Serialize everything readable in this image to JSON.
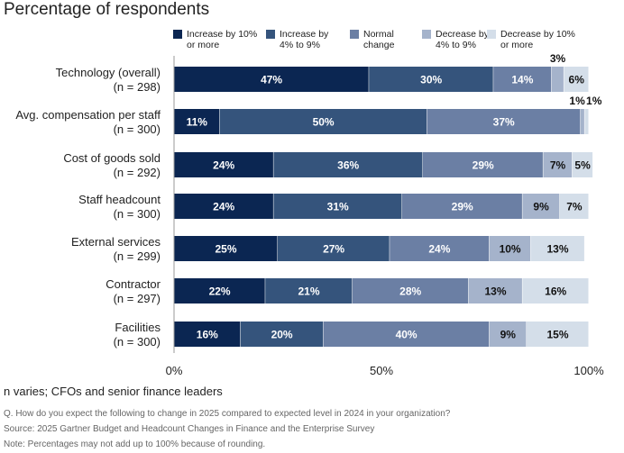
{
  "chart_data": {
    "type": "bar",
    "orientation": "horizontal",
    "stacked": true,
    "title": "Percentage of respondents",
    "categories": [
      "Technology (overall)",
      "Avg. compensation per staff",
      "Cost of goods sold",
      "Staff headcount",
      "External services",
      "Contractor",
      "Facilities"
    ],
    "category_n": [
      "(n = 298)",
      "(n = 300)",
      "(n = 292)",
      "(n = 300)",
      "(n = 299)",
      "(n = 297)",
      "(n = 300)"
    ],
    "series": [
      {
        "name": "Increase by 10% or more",
        "legend_lines": [
          "Increase by 10%",
          "or more"
        ],
        "color": "#0b2652",
        "values": [
          47,
          11,
          24,
          24,
          25,
          22,
          16
        ]
      },
      {
        "name": "Increase by 4% to 9%",
        "legend_lines": [
          "Increase by",
          "4% to 9%"
        ],
        "color": "#35547c",
        "values": [
          30,
          50,
          36,
          31,
          27,
          21,
          20
        ]
      },
      {
        "name": "Normal change",
        "legend_lines": [
          "Normal",
          "change"
        ],
        "color": "#6b7fa4",
        "values": [
          14,
          37,
          29,
          29,
          24,
          28,
          40
        ]
      },
      {
        "name": "Decrease by 4% to 9%",
        "legend_lines": [
          "Decrease by",
          "4% to 9%"
        ],
        "color": "#a5b3cb",
        "values": [
          3,
          1,
          7,
          9,
          10,
          13,
          9
        ]
      },
      {
        "name": "Decrease by 10% or more",
        "legend_lines": [
          "Decrease by 10%",
          "or more"
        ],
        "color": "#d4dee9",
        "values": [
          6,
          1,
          5,
          7,
          13,
          16,
          15
        ]
      }
    ],
    "xlim": [
      0,
      100
    ],
    "xticks": [
      "0%",
      "50%",
      "100%"
    ],
    "legend_position": "top",
    "grid": false
  },
  "subtitle": "n varies; CFOs and senior finance leaders",
  "footnotes": [
    "Q. How do you expect the following to change in 2025 compared to expected level in 2024 in your organization?",
    "Source: 2025 Gartner Budget and Headcount Changes in Finance and the Enterprise Survey",
    "Note: Percentages may not add up to 100% because of rounding."
  ]
}
